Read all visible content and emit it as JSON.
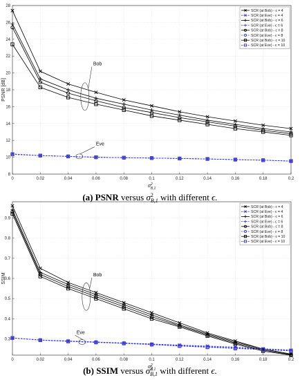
{
  "chart_data": [
    {
      "type": "line",
      "panel_tag": "(a)",
      "caption": "PSNR versus σ²_{B,1} with different ϵ.",
      "caption_label": "PSNR",
      "caption_rest": " versus ",
      "caption_tail": " with different ",
      "caption_eps": "ϵ.",
      "xlabel": "σ²_{B,1}",
      "ylabel": "PSNR [dB]",
      "xlim": [
        0,
        0.2
      ],
      "ylim": [
        8,
        28
      ],
      "xticks": [
        0,
        0.02,
        0.04,
        0.06,
        0.08,
        0.1,
        0.12,
        0.14,
        0.16,
        0.18,
        0.2
      ],
      "yticks": [
        8,
        10,
        12,
        14,
        16,
        18,
        20,
        22,
        24,
        26,
        28
      ],
      "grid": true,
      "legend_position": "top-right",
      "x": [
        0,
        0.02,
        0.04,
        0.06,
        0.08,
        0.1,
        0.12,
        0.14,
        0.16,
        0.18,
        0.2
      ],
      "series": [
        {
          "name": "SCR (at Bob) - ϵ = 4",
          "color": "#000000",
          "marker": "x",
          "dashed": false,
          "values": [
            27.4,
            20.2,
            18.7,
            17.7,
            16.8,
            16.1,
            15.4,
            14.8,
            14.3,
            13.8,
            13.4
          ]
        },
        {
          "name": "SCR (at Eve) - ϵ = 4",
          "color": "#3a3acc",
          "marker": "x",
          "dashed": true,
          "values": [
            10.4,
            10.2,
            10.1,
            10.0,
            9.95,
            9.9,
            9.85,
            9.8,
            9.72,
            9.65,
            9.55
          ]
        },
        {
          "name": "SCR (at Bob) - ϵ = 6",
          "color": "#000000",
          "marker": "+",
          "dashed": false,
          "values": [
            25.8,
            19.3,
            18.0,
            17.0,
            16.3,
            15.6,
            15.0,
            14.4,
            13.9,
            13.4,
            13.0
          ]
        },
        {
          "name": "SCR (at Eve) - ϵ = 6",
          "color": "#3a3acc",
          "marker": "+",
          "dashed": true,
          "values": [
            10.35,
            10.2,
            10.1,
            10.0,
            9.95,
            9.9,
            9.85,
            9.8,
            9.72,
            9.65,
            9.55
          ]
        },
        {
          "name": "SCR (at Bob) - ϵ = 8",
          "color": "#000000",
          "marker": "o",
          "dashed": false,
          "values": [
            25.4,
            18.9,
            17.6,
            16.7,
            15.9,
            15.3,
            14.7,
            14.2,
            13.7,
            13.2,
            12.8
          ]
        },
        {
          "name": "SCR (at Eve) - ϵ = 8",
          "color": "#3a3acc",
          "marker": "o",
          "dashed": true,
          "values": [
            10.35,
            10.2,
            10.1,
            10.0,
            9.95,
            9.9,
            9.85,
            9.8,
            9.72,
            9.65,
            9.55
          ]
        },
        {
          "name": "SCR (at Bob) - ϵ = 10",
          "color": "#000000",
          "marker": "s",
          "dashed": false,
          "values": [
            23.4,
            18.3,
            17.1,
            16.3,
            15.6,
            14.9,
            14.4,
            13.9,
            13.4,
            13.0,
            12.6
          ]
        },
        {
          "name": "SCR (at Eve) - ϵ = 10",
          "color": "#3a3acc",
          "marker": "s",
          "dashed": true,
          "values": [
            10.35,
            10.2,
            10.1,
            10.0,
            9.95,
            9.9,
            9.85,
            9.8,
            9.72,
            9.65,
            9.55
          ]
        }
      ],
      "annotations": [
        {
          "text": "Bob",
          "x": 0.052,
          "y": 17.2,
          "label_x": 0.058,
          "label_y": 20.9
        },
        {
          "text": "Eve",
          "x": 0.048,
          "y": 10.1,
          "label_x": 0.06,
          "label_y": 11.4
        }
      ]
    },
    {
      "type": "line",
      "panel_tag": "(b)",
      "caption": "SSIM versus σ²_{B,1} with different ϵ.",
      "caption_label": "SSIM",
      "caption_rest": " versus ",
      "caption_tail": " with different ",
      "caption_eps": "ϵ.",
      "xlabel": "σ²_{B,1}",
      "ylabel": "SSIM",
      "xlim": [
        0,
        0.2
      ],
      "ylim": [
        0.22,
        0.98
      ],
      "xticks": [
        0,
        0.02,
        0.04,
        0.06,
        0.08,
        0.1,
        0.12,
        0.14,
        0.16,
        0.18,
        0.2
      ],
      "yticks": [
        0.3,
        0.4,
        0.5,
        0.6,
        0.7,
        0.8,
        0.9
      ],
      "grid": true,
      "legend_position": "top-right",
      "x": [
        0,
        0.02,
        0.04,
        0.06,
        0.08,
        0.1,
        0.12,
        0.14,
        0.16,
        0.18,
        0.2
      ],
      "series": [
        {
          "name": "SCR (at Bob) - ϵ = 4",
          "color": "#000000",
          "marker": "x",
          "dashed": false,
          "values": [
            0.96,
            0.65,
            0.58,
            0.53,
            0.48,
            0.43,
            0.38,
            0.33,
            0.29,
            0.25,
            0.225
          ]
        },
        {
          "name": "SCR (at Eve) - ϵ = 4",
          "color": "#3a3acc",
          "marker": "x",
          "dashed": true,
          "values": [
            0.305,
            0.295,
            0.29,
            0.285,
            0.28,
            0.275,
            0.27,
            0.265,
            0.26,
            0.252,
            0.245
          ]
        },
        {
          "name": "SCR (at Bob) - ϵ = 6",
          "color": "#000000",
          "marker": "+",
          "dashed": false,
          "values": [
            0.94,
            0.63,
            0.57,
            0.52,
            0.47,
            0.42,
            0.37,
            0.325,
            0.285,
            0.25,
            0.225
          ]
        },
        {
          "name": "SCR (at Eve) - ϵ = 6",
          "color": "#3a3acc",
          "marker": "+",
          "dashed": true,
          "values": [
            0.305,
            0.295,
            0.29,
            0.285,
            0.28,
            0.275,
            0.268,
            0.262,
            0.256,
            0.25,
            0.243
          ]
        },
        {
          "name": "SCR (at Bob) - ϵ = 8",
          "color": "#000000",
          "marker": "o",
          "dashed": false,
          "values": [
            0.93,
            0.62,
            0.56,
            0.51,
            0.46,
            0.41,
            0.365,
            0.32,
            0.28,
            0.245,
            0.222
          ]
        },
        {
          "name": "SCR (at Eve) - ϵ = 8",
          "color": "#3a3acc",
          "marker": "o",
          "dashed": true,
          "values": [
            0.305,
            0.295,
            0.289,
            0.284,
            0.279,
            0.273,
            0.266,
            0.26,
            0.254,
            0.248,
            0.242
          ]
        },
        {
          "name": "SCR (at Bob) - ϵ = 10",
          "color": "#000000",
          "marker": "s",
          "dashed": false,
          "values": [
            0.92,
            0.61,
            0.55,
            0.5,
            0.45,
            0.4,
            0.36,
            0.315,
            0.275,
            0.24,
            0.22
          ]
        },
        {
          "name": "SCR (at Eve) - ϵ = 10",
          "color": "#3a3acc",
          "marker": "s",
          "dashed": true,
          "values": [
            0.305,
            0.294,
            0.288,
            0.283,
            0.278,
            0.272,
            0.265,
            0.259,
            0.253,
            0.247,
            0.241
          ]
        }
      ],
      "annotations": [
        {
          "text": "Bob",
          "x": 0.053,
          "y": 0.51,
          "label_x": 0.058,
          "label_y": 0.61
        },
        {
          "text": "Eve",
          "x": 0.05,
          "y": 0.285,
          "label_x": 0.046,
          "label_y": 0.325
        }
      ]
    }
  ]
}
